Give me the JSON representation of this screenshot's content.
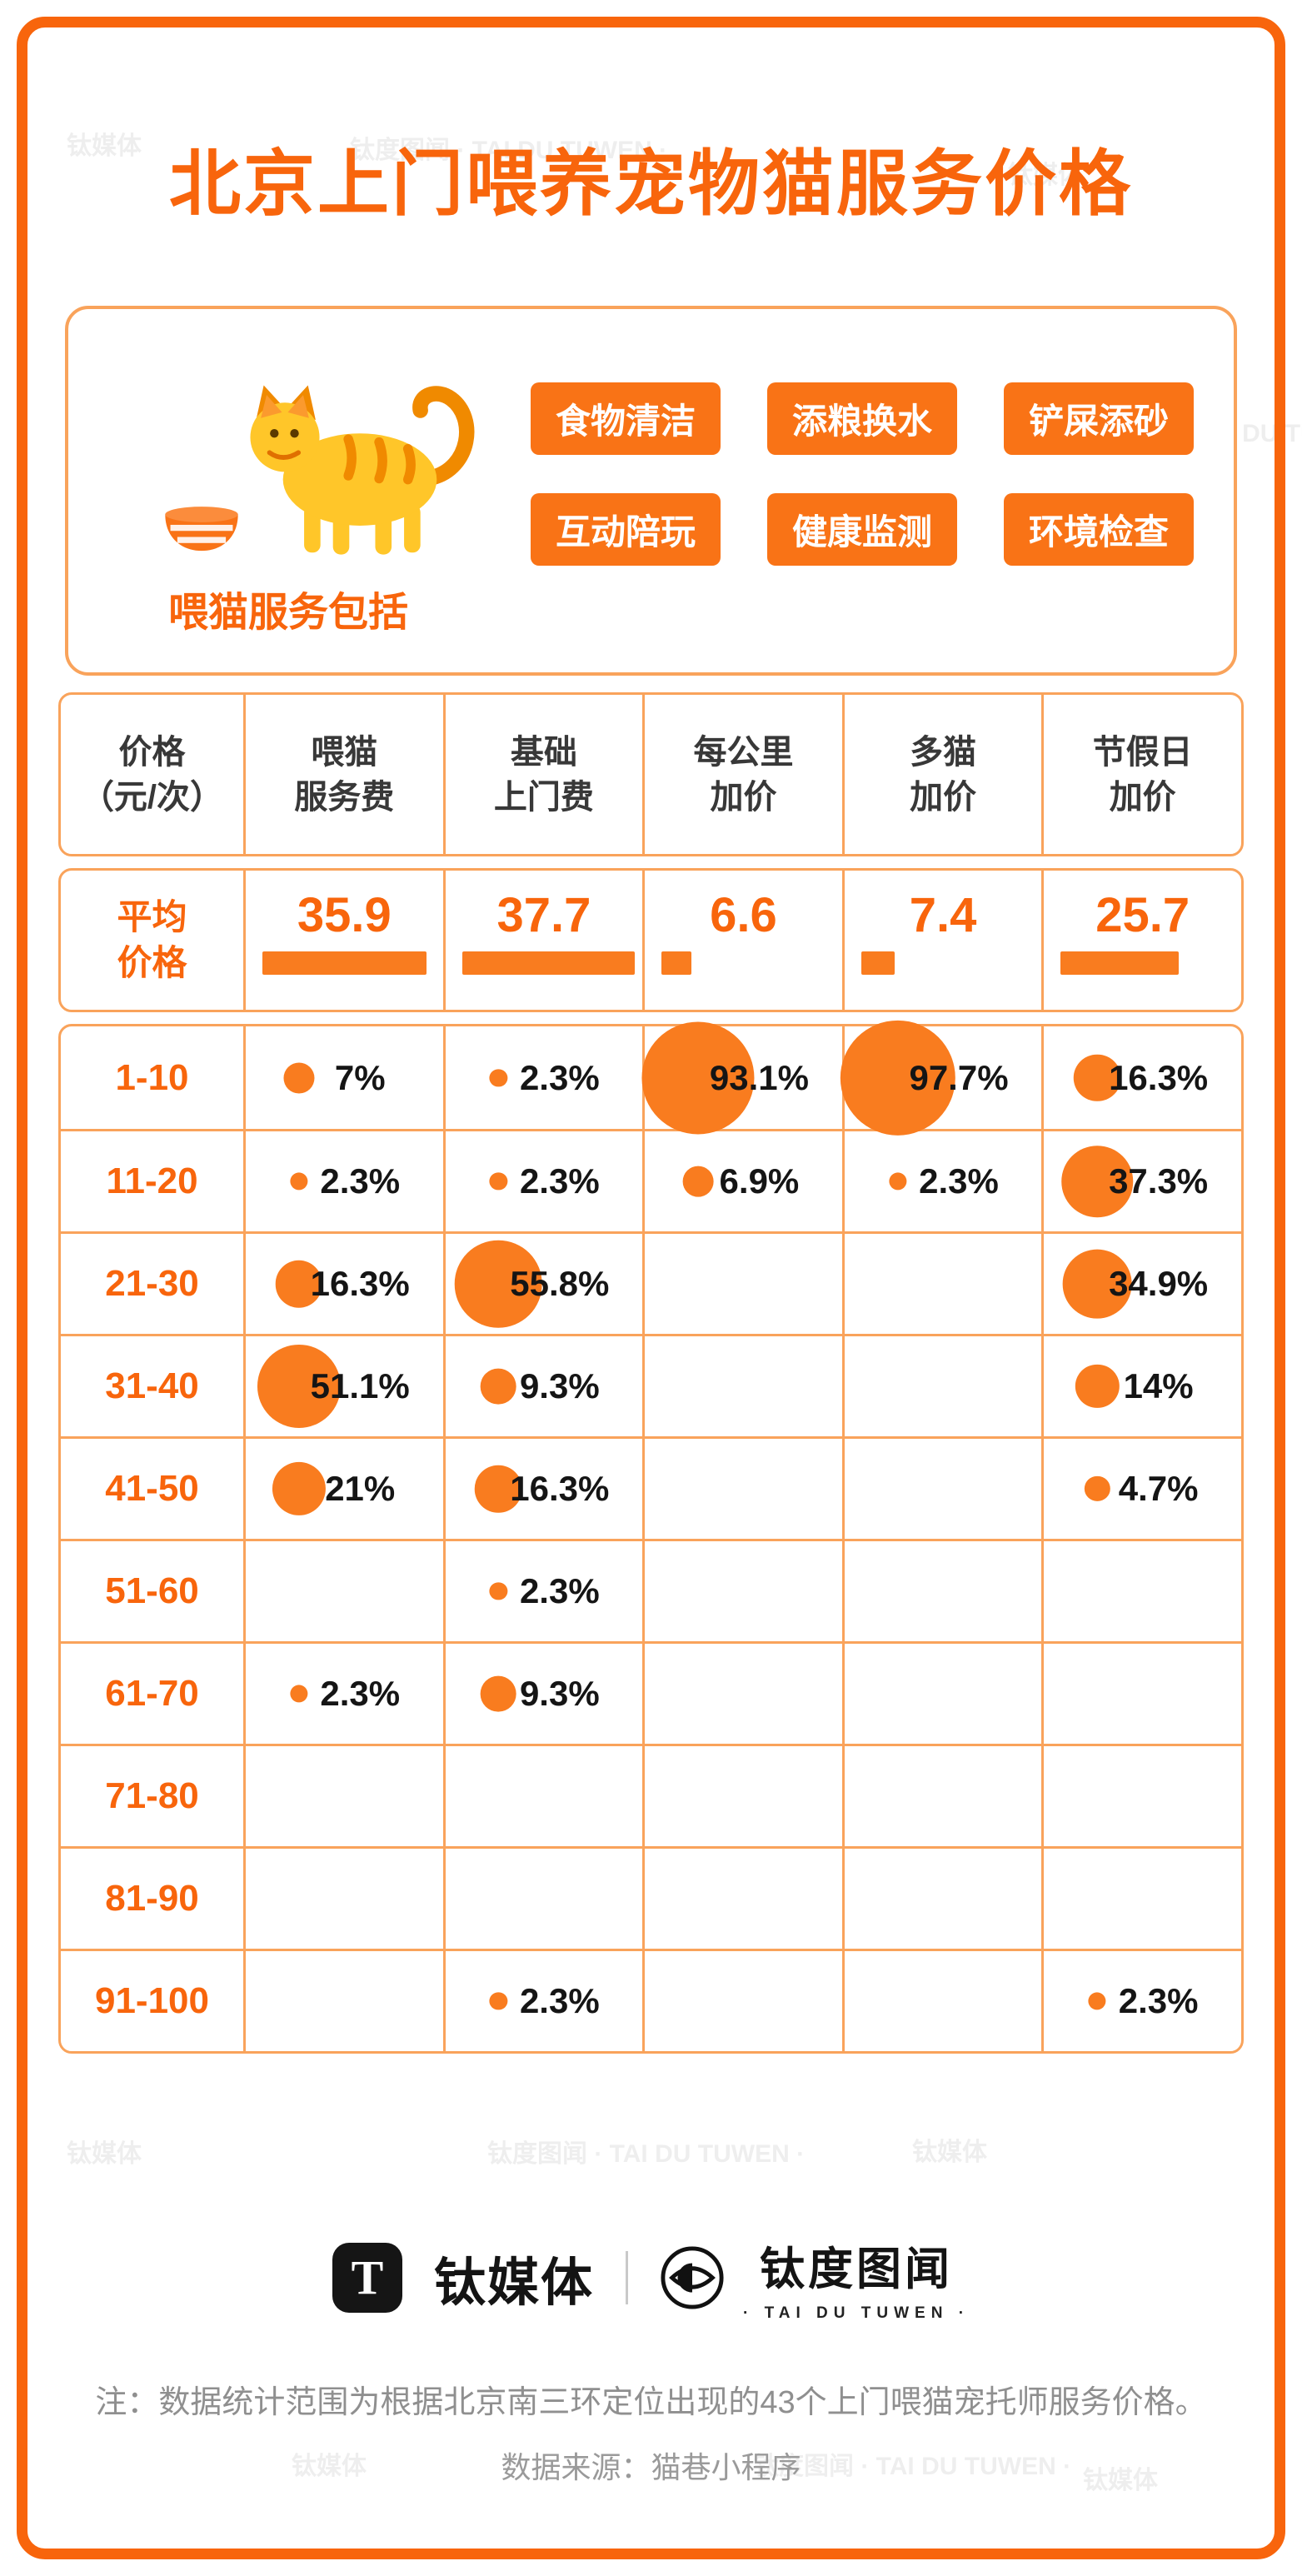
{
  "title": "北京上门喂养宠物猫服务价格",
  "services": {
    "label": "喂猫服务包括",
    "tags": [
      "食物清洁",
      "添粮换水",
      "铲屎添砂",
      "互动陪玩",
      "健康监测",
      "环境检查"
    ]
  },
  "chart_data": {
    "type": "table",
    "title": "北京上门喂养宠物猫服务价格",
    "unit_label": "价格\n（元/次）",
    "columns": [
      "喂猫\n服务费",
      "基础\n上门费",
      "每公里\n加价",
      "多猫\n加价",
      "节假日\n加价"
    ],
    "average_row": {
      "label": "平均\n价格",
      "values": [
        35.9,
        37.7,
        6.6,
        7.4,
        25.7
      ]
    },
    "price_bands": [
      "1-10",
      "11-20",
      "21-30",
      "31-40",
      "41-50",
      "51-60",
      "61-70",
      "71-80",
      "81-90",
      "91-100"
    ],
    "distribution_pct": [
      [
        7,
        2.3,
        93.1,
        97.7,
        16.3
      ],
      [
        2.3,
        2.3,
        6.9,
        2.3,
        37.3
      ],
      [
        16.3,
        55.8,
        null,
        null,
        34.9
      ],
      [
        51.1,
        9.3,
        null,
        null,
        14
      ],
      [
        21,
        16.3,
        null,
        null,
        4.7
      ],
      [
        null,
        2.3,
        null,
        null,
        null
      ],
      [
        2.3,
        9.3,
        null,
        null,
        null
      ],
      [
        null,
        null,
        null,
        null,
        null
      ],
      [
        null,
        null,
        null,
        null,
        null
      ],
      [
        null,
        2.3,
        null,
        null,
        2.3
      ]
    ]
  },
  "footer": {
    "brand1": "钛媒体",
    "brand1_logo_letter": "T",
    "brand2": "钛度图闻",
    "brand2_sub": "· TAI DU TUWEN ·",
    "note": "注：数据统计范围为根据北京南三环定位出现的43个上门喂猫宠托师服务价格。",
    "source": "数据来源：猫巷小程序"
  },
  "colors": {
    "accent": "#F8650C",
    "fill": "#F97C1F",
    "line": "#F9A35B",
    "tag": "#F97316",
    "text": "#222222",
    "note": "#8F8F8F",
    "watermark": "#9C9C9C"
  }
}
